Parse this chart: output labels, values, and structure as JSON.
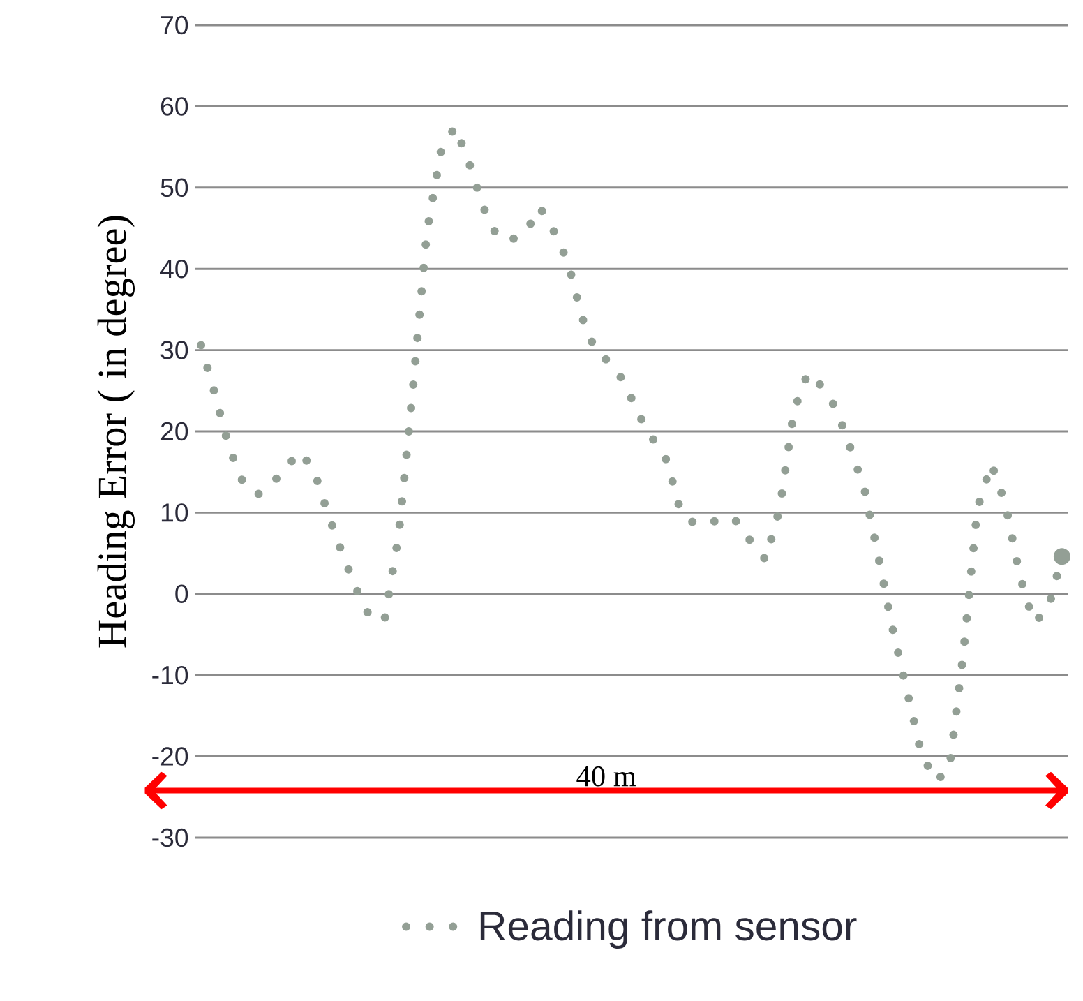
{
  "chart_data": {
    "type": "line",
    "ylabel": "Heading Error ( in degree)",
    "categories": [
      null,
      null,
      null,
      null,
      null,
      null,
      null,
      null,
      null,
      null,
      null,
      null,
      null,
      null,
      null,
      null,
      null,
      null,
      null,
      null,
      null,
      null,
      null,
      null,
      null,
      null,
      null,
      null,
      null,
      null,
      null,
      null,
      null,
      null,
      null,
      null,
      null,
      null,
      null,
      null,
      null,
      null,
      null,
      null,
      null,
      null,
      null,
      null,
      null,
      null,
      null,
      null,
      null,
      null,
      null,
      null,
      null,
      null,
      null,
      null,
      null,
      null
    ],
    "series": [
      {
        "name": "Reading from sensor",
        "color": "#939f95",
        "values": [
          30.6,
          24.5,
          17.9,
          13.6,
          12.2,
          13.5,
          15.5,
          17.5,
          15.2,
          9.8,
          5.0,
          0.6,
          -3.0,
          -3.2,
          7.2,
          25,
          44.5,
          54.5,
          57.5,
          53,
          47.6,
          43.9,
          43.6,
          44.5,
          47.6,
          44.6,
          40.8,
          34,
          29.7,
          28.5,
          26.0,
          22.1,
          19.1,
          16.4,
          10,
          8.6,
          8.6,
          9.5,
          8.9,
          6.3,
          4.2,
          10.5,
          22.5,
          27.2,
          25.5,
          22.8,
          18,
          12.9,
          4.5,
          -4.3,
          -11.8,
          -19.4,
          -23,
          -21.8,
          -7.5,
          10.5,
          16,
          11,
          2.3,
          -3.5,
          -2.0,
          4.6
        ]
      }
    ],
    "ylim": [
      -30,
      70
    ],
    "yticks": [
      -30,
      -20,
      -10,
      0,
      10,
      20,
      30,
      40,
      50,
      60,
      70
    ],
    "grid": "y",
    "legend": "bottom",
    "line_style": "dotted",
    "marker": "none",
    "tick_labels": "y",
    "annotations": [
      "40 m"
    ]
  }
}
